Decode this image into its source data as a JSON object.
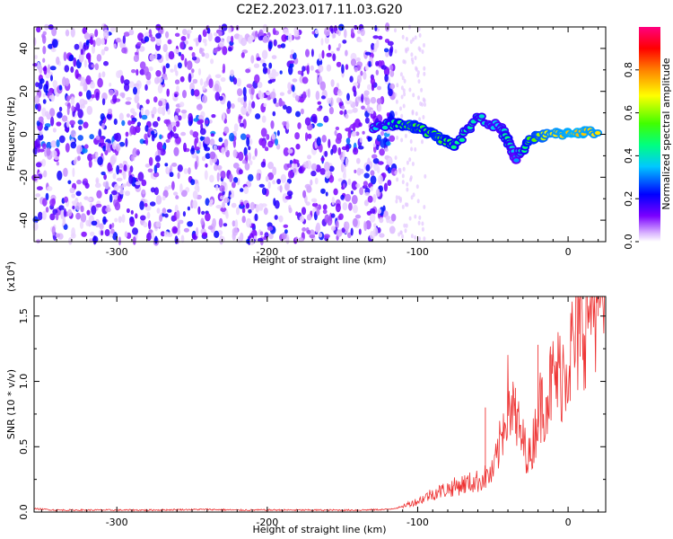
{
  "figure": {
    "title": "C2E2.2023.017.11.03.G20"
  },
  "chart_data": [
    {
      "type": "heatmap",
      "xlabel": "Height of straight line (km)",
      "ylabel": "Frequency (Hz)",
      "xlim": [
        -355,
        25
      ],
      "ylim": [
        -50,
        50
      ],
      "x_ticks": [
        -300,
        -200,
        -100,
        0
      ],
      "x_tick_labels": [
        "-300",
        "-200",
        "-100",
        "0"
      ],
      "y_ticks": [
        -40,
        -20,
        0,
        20,
        40
      ],
      "y_tick_labels": [
        "-40",
        "-20",
        "0",
        "20",
        "40"
      ],
      "grid": false,
      "colorbar": {
        "label": "Normalized spectral amplitude",
        "range": [
          0,
          1
        ],
        "ticks": [
          0.0,
          0.2,
          0.4,
          0.6,
          0.8
        ],
        "tick_labels": [
          "0.0",
          "0.2",
          "0.4",
          "0.6",
          "0.8"
        ],
        "colormap": "rainbow (white-violet-blue-cyan-green-yellow-red-magenta)"
      },
      "noise_region_x": [
        -355,
        -115
      ],
      "signal_trace": [
        {
          "x": -130,
          "freq": 3,
          "amp": 0.35
        },
        {
          "x": -115,
          "freq": 5,
          "amp": 0.45
        },
        {
          "x": -105,
          "freq": 4,
          "amp": 0.55
        },
        {
          "x": -95,
          "freq": 2,
          "amp": 0.5
        },
        {
          "x": -85,
          "freq": -2,
          "amp": 0.55
        },
        {
          "x": -75,
          "freq": -5,
          "amp": 0.45
        },
        {
          "x": -60,
          "freq": 8,
          "amp": 0.4
        },
        {
          "x": -45,
          "freq": 3,
          "amp": 0.35
        },
        {
          "x": -40,
          "freq": -3,
          "amp": 0.45
        },
        {
          "x": -35,
          "freq": -12,
          "amp": 0.3
        },
        {
          "x": -25,
          "freq": -2,
          "amp": 0.55
        },
        {
          "x": -10,
          "freq": 0,
          "amp": 0.7
        },
        {
          "x": 5,
          "freq": 1,
          "amp": 0.75
        },
        {
          "x": 20,
          "freq": 1,
          "amp": 0.7
        }
      ]
    },
    {
      "type": "line",
      "xlabel": "Height of straight line (km)",
      "ylabel": "SNR (10 * v/v)",
      "y_multiplier_label": "(x10",
      "y_multiplier_exponent": "4",
      "y_multiplier_close": ")",
      "xlim": [
        -355,
        25
      ],
      "ylim": [
        0,
        16500
      ],
      "x_ticks": [
        -300,
        -200,
        -100,
        0
      ],
      "x_tick_labels": [
        "-300",
        "-200",
        "-100",
        "0"
      ],
      "y_ticks": [
        0,
        5000,
        10000,
        15000
      ],
      "y_tick_labels": [
        "0.0",
        "0.5",
        "1.0",
        "1.5"
      ],
      "grid": false,
      "series": [
        {
          "color": "#ee3333",
          "x": [
            -355,
            -340,
            -320,
            -300,
            -280,
            -260,
            -240,
            -220,
            -200,
            -180,
            -160,
            -140,
            -120,
            -110,
            -100,
            -90,
            -80,
            -70,
            -60,
            -50,
            -45,
            -40,
            -35,
            -30,
            -25,
            -20,
            -15,
            -10,
            -5,
            0,
            5,
            10,
            15,
            20,
            25
          ],
          "y": [
            250,
            150,
            150,
            150,
            150,
            180,
            200,
            150,
            160,
            150,
            150,
            150,
            200,
            400,
            700,
            1200,
            1500,
            1800,
            2000,
            2500,
            4500,
            7500,
            6000,
            4500,
            3500,
            6500,
            7500,
            8500,
            9000,
            10000,
            11000,
            12500,
            14000,
            15000,
            14800
          ]
        }
      ],
      "spikes": [
        {
          "x": -55,
          "y": 8000
        },
        {
          "x": -35,
          "y": 9500
        },
        {
          "x": -20,
          "y": 12800
        },
        {
          "x": 8,
          "y": 16500
        },
        {
          "x": 20,
          "y": 16500
        }
      ]
    }
  ]
}
